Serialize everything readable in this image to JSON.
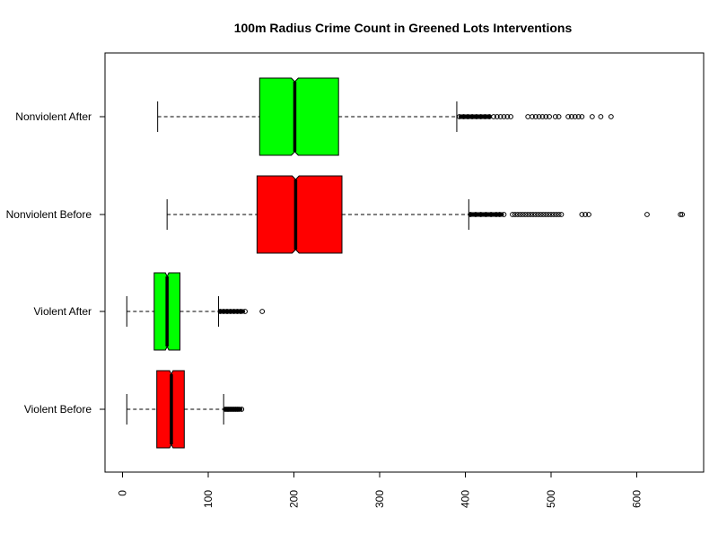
{
  "chart_data": {
    "type": "boxplot",
    "orientation": "horizontal",
    "notched": true,
    "title": "100m Radius Crime Count in Greened Lots Interventions",
    "xlabel": "",
    "ylabel": "",
    "xlim": [
      -20,
      680
    ],
    "xticks": [
      0,
      100,
      200,
      300,
      400,
      500,
      600
    ],
    "xtick_labels": [
      "0",
      "100",
      "200",
      "300",
      "400",
      "500",
      "600"
    ],
    "colors": {
      "before": "#ff0000",
      "after": "#00ff00",
      "outline": "#000000"
    },
    "series": [
      {
        "name": "Violent Before",
        "color": "#ff0000",
        "whisker_low": 5,
        "q1": 40,
        "median": 57,
        "q3": 72,
        "whisker_high": 118,
        "notch_low": 55,
        "notch_high": 59,
        "outlier_range": [
          118,
          140
        ],
        "outliers": [
          120,
          122,
          124,
          126,
          128,
          130,
          132,
          134,
          136,
          139
        ]
      },
      {
        "name": "Violent After",
        "color": "#00ff00",
        "whisker_low": 5,
        "q1": 37,
        "median": 52,
        "q3": 67,
        "whisker_high": 112,
        "notch_low": 50,
        "notch_high": 54,
        "outlier_range": [
          112,
          143
        ],
        "outliers": [
          114,
          118,
          122,
          126,
          130,
          134,
          138,
          143,
          163
        ]
      },
      {
        "name": "Nonviolent Before",
        "color": "#ff0000",
        "whisker_low": 52,
        "q1": 157,
        "median": 202,
        "q3": 256,
        "whisker_high": 404,
        "notch_low": 198,
        "notch_high": 206,
        "outlier_range": [
          404,
          445
        ],
        "outliers": [
          406,
          412,
          418,
          424,
          430,
          436,
          440,
          445,
          455,
          458,
          461,
          464,
          467,
          470,
          473,
          476,
          479,
          482,
          485,
          488,
          491,
          494,
          497,
          500,
          503,
          506,
          509,
          512,
          536,
          540,
          544,
          612,
          651,
          653
        ]
      },
      {
        "name": "Nonviolent After",
        "color": "#00ff00",
        "whisker_low": 41,
        "q1": 160,
        "median": 201,
        "q3": 252,
        "whisker_high": 390,
        "notch_low": 197,
        "notch_high": 205,
        "outlier_range": [
          392,
          430
        ],
        "outliers": [
          393,
          398,
          403,
          408,
          413,
          418,
          423,
          428,
          433,
          437,
          441,
          445,
          449,
          453,
          473,
          478,
          482,
          486,
          490,
          494,
          498,
          505,
          509,
          520,
          524,
          528,
          532,
          536,
          548,
          558,
          570
        ]
      }
    ]
  }
}
